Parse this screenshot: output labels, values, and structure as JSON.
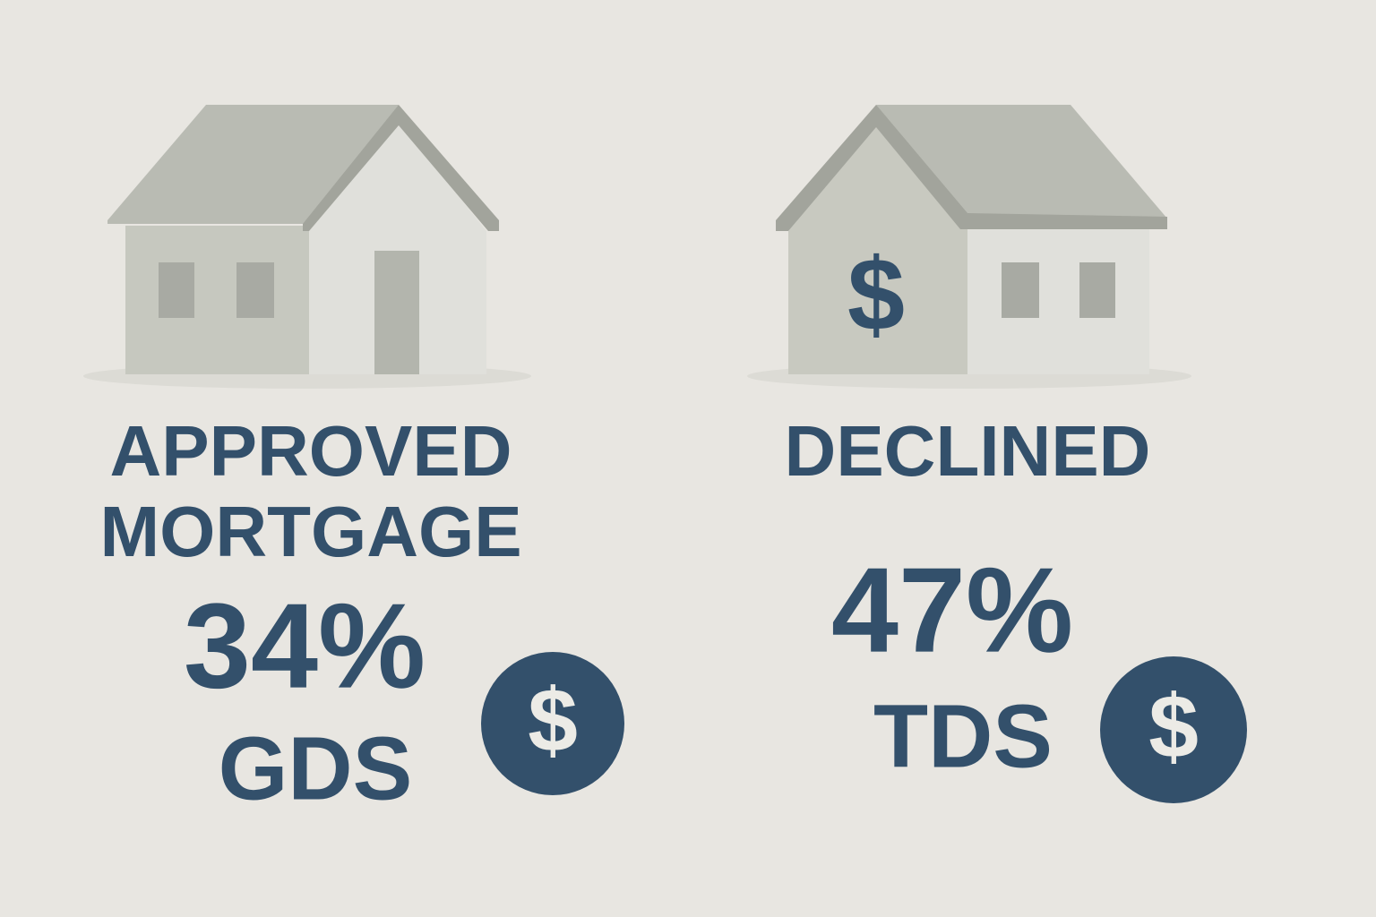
{
  "approved": {
    "status_lines": [
      "APPROVED",
      "MORTGAGE"
    ],
    "ratio": "34%",
    "metric": "GDS",
    "icon": "$"
  },
  "declined": {
    "status_lines": [
      "DECLINED"
    ],
    "house_icon": "$",
    "ratio": "47%",
    "metric": "TDS",
    "icon": "$"
  }
}
